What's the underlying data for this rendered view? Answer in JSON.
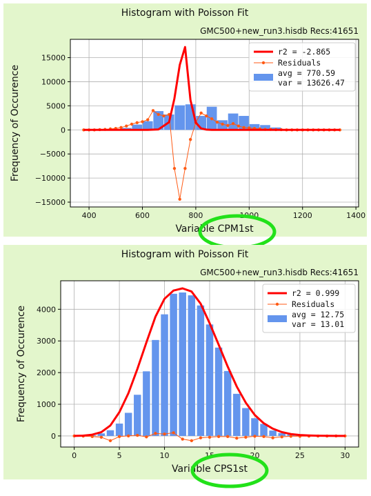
{
  "chart_data": [
    {
      "type": "bar",
      "title": "Histogram with Poisson Fit",
      "subtitle": "GMC500+new_run3.hisdb  Recs:41651",
      "xlabel": "Variable CPM1st",
      "ylabel": "Frequency of Occurence",
      "xlim": [
        330,
        1410
      ],
      "ylim": [
        -16000,
        18800
      ],
      "xticks": [
        400,
        600,
        800,
        1000,
        1200,
        1400
      ],
      "yticks": [
        -15000,
        -10000,
        -5000,
        0,
        5000,
        10000,
        15000
      ],
      "grid": true,
      "legend_position": "top-right",
      "legend": {
        "fit_label": "r2  = -2.865",
        "residuals_label": "Residuals",
        "bars_label_line1": "avg = 770.59",
        "bars_label_line2": "var = 13626.47"
      },
      "colors": {
        "bars": "#6495ed",
        "fit": "#ff0000",
        "residuals": "#ff5a14"
      },
      "bar_width": 38,
      "bars": {
        "x": [
          540,
          580,
          620,
          660,
          700,
          740,
          780,
          820,
          860,
          900,
          940,
          980,
          1020,
          1060,
          1100
        ],
        "y": [
          400,
          1100,
          1800,
          3900,
          3200,
          5100,
          5300,
          2900,
          4800,
          2000,
          3400,
          2900,
          1200,
          1000,
          500
        ]
      },
      "fit": {
        "x": [
          380,
          420,
          460,
          500,
          540,
          580,
          620,
          660,
          700,
          720,
          740,
          760,
          780,
          800,
          820,
          840,
          860,
          900,
          940,
          980,
          1020,
          1060,
          1100,
          1140,
          1180,
          1220,
          1260,
          1300,
          1340
        ],
        "y": [
          0,
          0,
          0,
          0,
          0,
          0,
          0,
          100,
          1600,
          6500,
          13500,
          17200,
          6200,
          1500,
          300,
          50,
          0,
          0,
          0,
          0,
          0,
          0,
          0,
          0,
          0,
          0,
          0,
          0,
          0
        ]
      },
      "residuals": {
        "x": [
          380,
          400,
          420,
          440,
          460,
          480,
          500,
          520,
          540,
          560,
          580,
          600,
          620,
          640,
          660,
          680,
          700,
          720,
          740,
          760,
          780,
          800,
          820,
          840,
          860,
          880,
          900,
          920,
          940,
          960,
          980,
          1000,
          1020,
          1040,
          1060,
          1080,
          1100,
          1120,
          1140,
          1160,
          1180,
          1200,
          1220,
          1240,
          1260,
          1280,
          1300,
          1320,
          1340
        ],
        "y": [
          0,
          0,
          0,
          50,
          100,
          200,
          300,
          500,
          800,
          1200,
          1500,
          1700,
          2100,
          4000,
          3200,
          2900,
          3200,
          -8000,
          -14400,
          -8000,
          -2000,
          1500,
          3500,
          2900,
          2300,
          1600,
          1200,
          900,
          1300,
          800,
          500,
          400,
          300,
          200,
          100,
          100,
          50,
          50,
          0,
          0,
          0,
          0,
          0,
          0,
          0,
          0,
          0,
          0,
          0
        ]
      }
    },
    {
      "type": "bar",
      "title": "Histogram with Poisson Fit",
      "subtitle": "GMC500+new_run3.hisdb  Recs:41651",
      "xlabel": "Variable CPS1st",
      "ylabel": "Frequency of Occurence",
      "xlim": [
        -1.5,
        31.5
      ],
      "ylim": [
        -350,
        4900
      ],
      "xticks": [
        0,
        5,
        10,
        15,
        20,
        25,
        30
      ],
      "yticks": [
        0,
        1000,
        2000,
        3000,
        4000
      ],
      "grid": true,
      "legend_position": "top-right",
      "legend": {
        "fit_label": "r2  = 0.999",
        "residuals_label": "Residuals",
        "bars_label_line1": "avg = 12.75",
        "bars_label_line2": "var = 13.01"
      },
      "colors": {
        "bars": "#6495ed",
        "fit": "#ff0000",
        "residuals": "#ff5a14"
      },
      "bar_width": 0.8,
      "bars": {
        "x": [
          0,
          1,
          2,
          3,
          4,
          5,
          6,
          7,
          8,
          9,
          10,
          11,
          12,
          13,
          14,
          15,
          16,
          17,
          18,
          19,
          20,
          21,
          22,
          23,
          24,
          25,
          26,
          27,
          28,
          29,
          30
        ],
        "y": [
          0,
          5,
          20,
          80,
          180,
          390,
          730,
          1300,
          2040,
          3030,
          3840,
          4490,
          4530,
          4440,
          4120,
          3520,
          2790,
          2050,
          1330,
          880,
          560,
          380,
          170,
          90,
          50,
          20,
          10,
          5,
          0,
          0,
          0
        ]
      },
      "fit": {
        "x": [
          0,
          1,
          2,
          3,
          4,
          5,
          6,
          7,
          8,
          9,
          10,
          11,
          12,
          13,
          14,
          15,
          16,
          17,
          18,
          19,
          20,
          21,
          22,
          23,
          24,
          25,
          26,
          27,
          28,
          29,
          30
        ],
        "y": [
          0,
          10,
          40,
          120,
          330,
          750,
          1350,
          2120,
          2960,
          3770,
          4330,
          4590,
          4660,
          4560,
          4180,
          3560,
          2880,
          2190,
          1560,
          1050,
          660,
          400,
          230,
          120,
          60,
          30,
          15,
          7,
          3,
          1,
          0
        ]
      },
      "residuals": {
        "x": [
          0,
          1,
          2,
          3,
          4,
          5,
          6,
          7,
          8,
          9,
          10,
          11,
          12,
          13,
          14,
          15,
          16,
          17,
          18,
          19,
          20,
          21,
          22,
          23,
          24,
          25,
          26,
          27,
          28,
          29,
          30
        ],
        "y": [
          0,
          -5,
          -20,
          -40,
          -150,
          -20,
          0,
          20,
          -30,
          80,
          60,
          100,
          -100,
          -150,
          -60,
          -40,
          -20,
          -20,
          -70,
          -40,
          -10,
          -20,
          -60,
          -30,
          -10,
          -10,
          -5,
          -2,
          -3,
          -1,
          0
        ]
      }
    }
  ]
}
